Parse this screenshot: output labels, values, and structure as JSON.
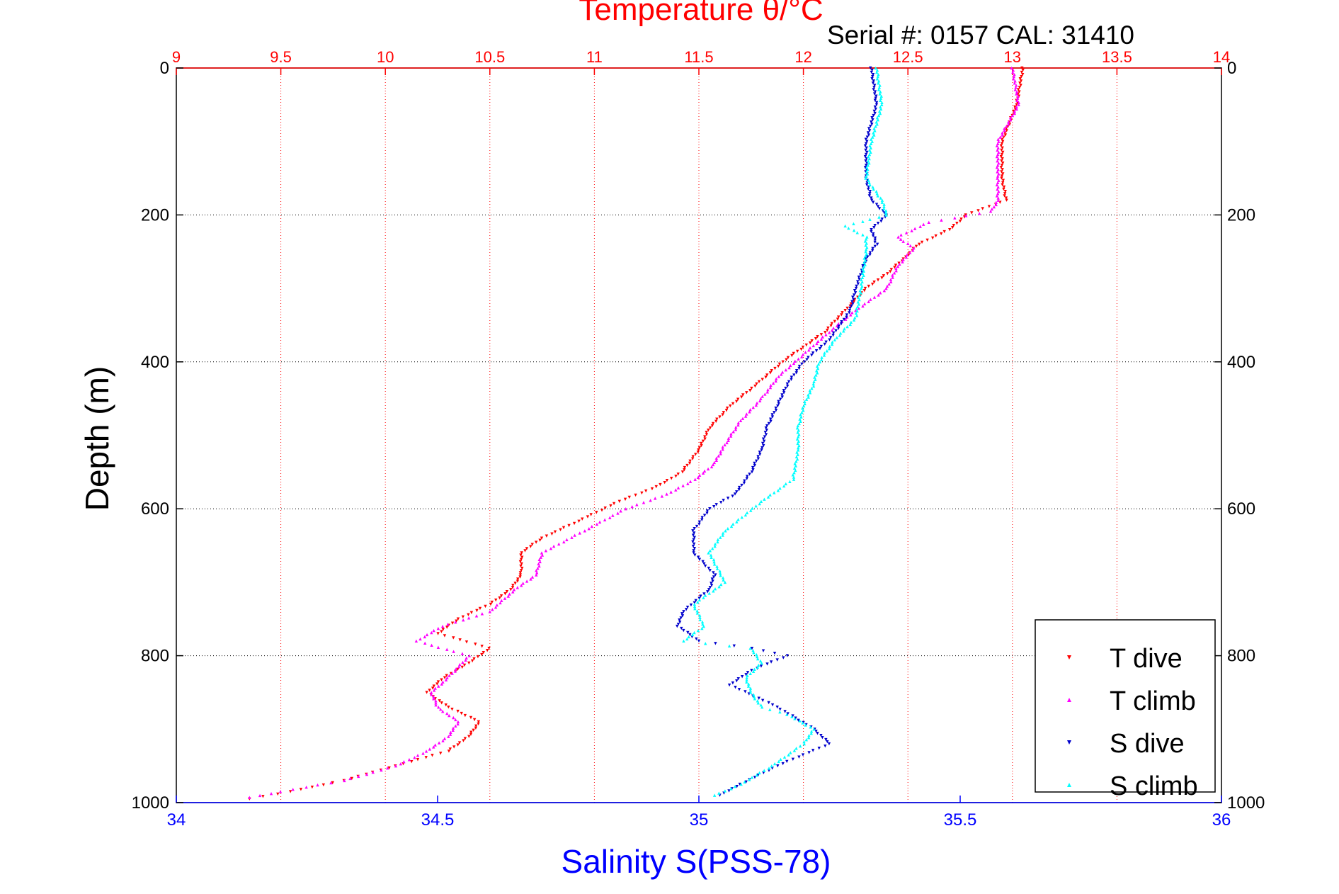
{
  "chart_data": {
    "type": "scatter",
    "header": "Serial #: 0157  CAL: 31410",
    "y_axis": {
      "label": "Depth (m)",
      "range": [
        0,
        1000
      ],
      "inverted": true,
      "ticks": [
        0,
        200,
        400,
        600,
        800,
        1000
      ]
    },
    "x_axis_bottom": {
      "label": "Salinity S(PSS-78)",
      "range": [
        34,
        36
      ],
      "ticks": [
        "34",
        "34.5",
        "35",
        "35.5",
        "36"
      ]
    },
    "x_axis_top": {
      "label": "Temperature θ/°C",
      "range": [
        9,
        14
      ],
      "ticks": [
        "9",
        "9.5",
        "10",
        "10.5",
        "11",
        "11.5",
        "12",
        "12.5",
        "13",
        "13.5",
        "14"
      ]
    },
    "grid": true,
    "legend_position": "bottom-right",
    "colors": {
      "temperature_axis": "#ff0000",
      "salinity_axis": "#0000ff",
      "t_dive": "#ff0000",
      "t_climb": "#ff00ff",
      "s_dive": "#0000cc",
      "s_climb": "#00ffff"
    },
    "series": [
      {
        "name": "T dive",
        "axis": "temperature",
        "marker": "triangle-down",
        "points": [
          [
            13.05,
            0
          ],
          [
            13.02,
            50
          ],
          [
            12.95,
            100
          ],
          [
            12.95,
            150
          ],
          [
            12.97,
            180
          ],
          [
            12.78,
            200
          ],
          [
            12.7,
            220
          ],
          [
            12.55,
            240
          ],
          [
            12.48,
            260
          ],
          [
            12.4,
            280
          ],
          [
            12.3,
            300
          ],
          [
            12.2,
            330
          ],
          [
            12.1,
            360
          ],
          [
            12.0,
            380
          ],
          [
            11.9,
            400
          ],
          [
            11.78,
            430
          ],
          [
            11.65,
            460
          ],
          [
            11.55,
            490
          ],
          [
            11.5,
            520
          ],
          [
            11.42,
            550
          ],
          [
            11.3,
            570
          ],
          [
            11.12,
            590
          ],
          [
            10.9,
            620
          ],
          [
            10.75,
            640
          ],
          [
            10.65,
            660
          ],
          [
            10.65,
            690
          ],
          [
            10.6,
            710
          ],
          [
            10.5,
            730
          ],
          [
            10.35,
            750
          ],
          [
            10.25,
            770
          ],
          [
            10.5,
            790
          ],
          [
            10.4,
            810
          ],
          [
            10.28,
            830
          ],
          [
            10.2,
            850
          ],
          [
            10.3,
            870
          ],
          [
            10.45,
            890
          ],
          [
            10.4,
            910
          ],
          [
            10.3,
            930
          ],
          [
            10.05,
            950
          ],
          [
            9.8,
            970
          ],
          [
            9.55,
            985
          ],
          [
            9.35,
            995
          ]
        ]
      },
      {
        "name": "T climb",
        "axis": "temperature",
        "marker": "triangle-up",
        "points": [
          [
            13.0,
            0
          ],
          [
            13.03,
            50
          ],
          [
            12.93,
            100
          ],
          [
            12.93,
            150
          ],
          [
            12.93,
            180
          ],
          [
            12.9,
            195
          ],
          [
            12.6,
            210
          ],
          [
            12.45,
            230
          ],
          [
            12.53,
            245
          ],
          [
            12.45,
            270
          ],
          [
            12.4,
            300
          ],
          [
            12.25,
            330
          ],
          [
            12.12,
            360
          ],
          [
            12.0,
            390
          ],
          [
            11.88,
            420
          ],
          [
            11.8,
            450
          ],
          [
            11.7,
            480
          ],
          [
            11.63,
            510
          ],
          [
            11.57,
            540
          ],
          [
            11.48,
            560
          ],
          [
            11.35,
            580
          ],
          [
            11.15,
            600
          ],
          [
            10.95,
            630
          ],
          [
            10.75,
            660
          ],
          [
            10.72,
            690
          ],
          [
            10.62,
            710
          ],
          [
            10.5,
            740
          ],
          [
            10.27,
            760
          ],
          [
            10.15,
            780
          ],
          [
            10.4,
            800
          ],
          [
            10.3,
            830
          ],
          [
            10.22,
            850
          ],
          [
            10.25,
            870
          ],
          [
            10.35,
            890
          ],
          [
            10.3,
            910
          ],
          [
            10.2,
            930
          ],
          [
            10.05,
            950
          ],
          [
            9.8,
            970
          ],
          [
            9.5,
            985
          ],
          [
            9.35,
            993
          ]
        ]
      },
      {
        "name": "S dive",
        "axis": "salinity",
        "marker": "triangle-down",
        "points": [
          [
            35.33,
            0
          ],
          [
            35.34,
            50
          ],
          [
            35.32,
            100
          ],
          [
            35.32,
            150
          ],
          [
            35.33,
            180
          ],
          [
            35.36,
            200
          ],
          [
            35.33,
            220
          ],
          [
            35.34,
            240
          ],
          [
            35.32,
            260
          ],
          [
            35.3,
            300
          ],
          [
            35.29,
            330
          ],
          [
            35.25,
            370
          ],
          [
            35.2,
            400
          ],
          [
            35.17,
            430
          ],
          [
            35.15,
            460
          ],
          [
            35.13,
            490
          ],
          [
            35.12,
            520
          ],
          [
            35.1,
            550
          ],
          [
            35.07,
            580
          ],
          [
            35.02,
            600
          ],
          [
            34.99,
            630
          ],
          [
            34.99,
            660
          ],
          [
            35.03,
            690
          ],
          [
            35.02,
            710
          ],
          [
            34.97,
            740
          ],
          [
            34.96,
            760
          ],
          [
            35.0,
            780
          ],
          [
            35.1,
            790
          ],
          [
            35.17,
            800
          ],
          [
            35.1,
            820
          ],
          [
            35.06,
            840
          ],
          [
            35.15,
            870
          ],
          [
            35.22,
            900
          ],
          [
            35.25,
            920
          ],
          [
            35.15,
            950
          ],
          [
            35.08,
            975
          ],
          [
            35.04,
            990
          ]
        ]
      },
      {
        "name": "S climb",
        "axis": "salinity",
        "marker": "triangle-up",
        "points": [
          [
            35.34,
            0
          ],
          [
            35.35,
            50
          ],
          [
            35.33,
            100
          ],
          [
            35.32,
            150
          ],
          [
            35.35,
            180
          ],
          [
            35.36,
            200
          ],
          [
            35.28,
            215
          ],
          [
            35.32,
            230
          ],
          [
            35.32,
            250
          ],
          [
            35.31,
            300
          ],
          [
            35.3,
            340
          ],
          [
            35.26,
            370
          ],
          [
            35.23,
            400
          ],
          [
            35.22,
            430
          ],
          [
            35.2,
            460
          ],
          [
            35.19,
            490
          ],
          [
            35.19,
            520
          ],
          [
            35.18,
            560
          ],
          [
            35.12,
            590
          ],
          [
            35.05,
            630
          ],
          [
            35.02,
            660
          ],
          [
            35.05,
            700
          ],
          [
            34.99,
            730
          ],
          [
            35.01,
            760
          ],
          [
            34.97,
            780
          ],
          [
            35.1,
            790
          ],
          [
            35.12,
            810
          ],
          [
            35.09,
            830
          ],
          [
            35.1,
            850
          ],
          [
            35.12,
            870
          ],
          [
            35.17,
            880
          ],
          [
            35.22,
            900
          ],
          [
            35.2,
            920
          ],
          [
            35.14,
            950
          ],
          [
            35.08,
            975
          ],
          [
            35.03,
            990
          ]
        ]
      }
    ]
  }
}
